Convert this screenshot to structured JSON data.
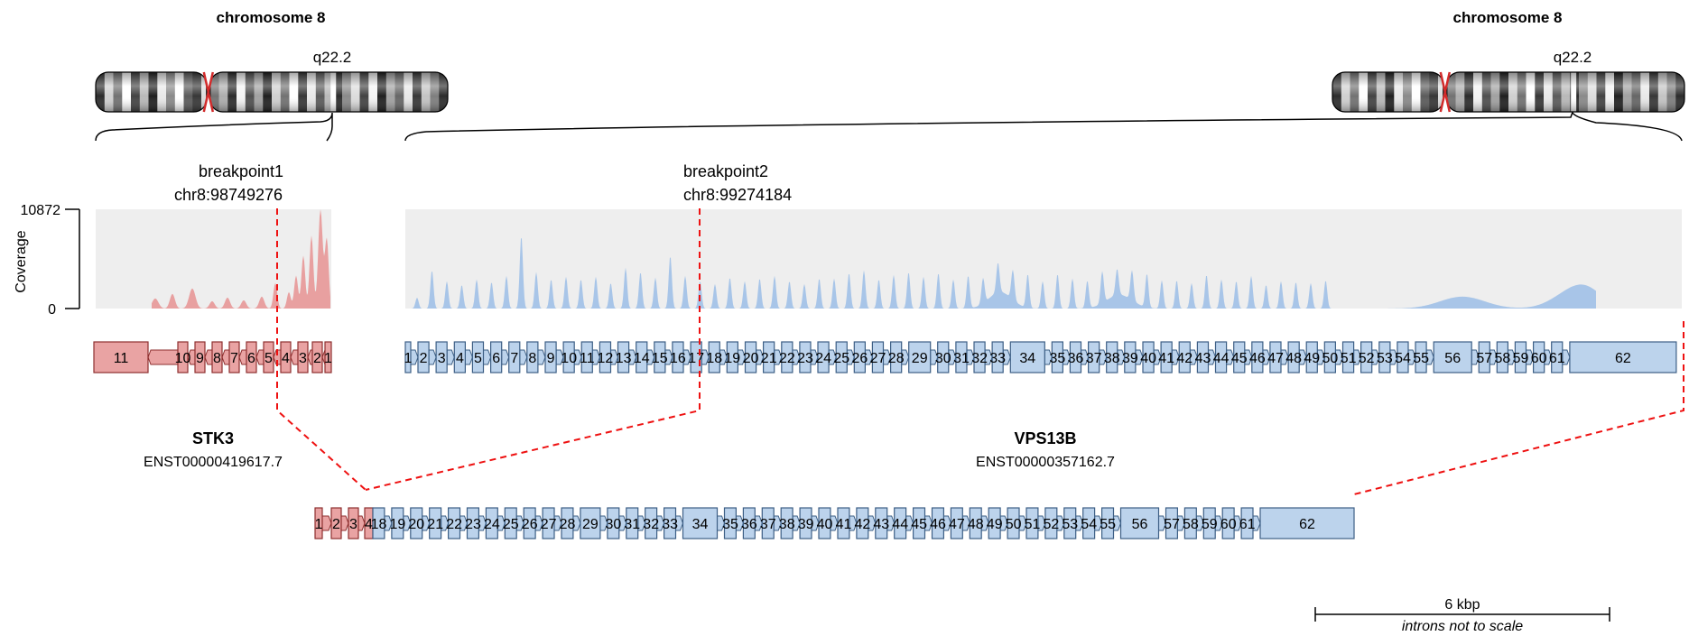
{
  "colors": {
    "gene1_fill": "#e9a3a3",
    "gene1_stroke": "#8e2f2f",
    "gene2_fill": "#bcd3ec",
    "gene2_stroke": "#3d5f85",
    "coverage1": "#e8a0a0",
    "coverage2": "#a8c5e8",
    "coverage_bg": "#eeeeee",
    "breakpoint": "#ee1111",
    "centromere": "#d22b2b"
  },
  "chromosome_left": {
    "title": "chromosome 8",
    "band": "q22.2"
  },
  "chromosome_right": {
    "title": "chromosome 8",
    "band": "q22.2"
  },
  "breakpoint1": {
    "label": "breakpoint1",
    "position": "chr8:98749276"
  },
  "breakpoint2": {
    "label": "breakpoint2",
    "position": "chr8:99274184"
  },
  "coverage_axis": {
    "label": "Coverage",
    "max": "10872",
    "min": "0"
  },
  "gene1": {
    "name": "STK3",
    "transcript": "ENST00000419617.7",
    "exons": [
      "11",
      "10",
      "9",
      "8",
      "7",
      "6",
      "5",
      "4",
      "3",
      "2",
      "1"
    ]
  },
  "gene2": {
    "name": "VPS13B",
    "transcript": "ENST00000357162.7",
    "exons": [
      "1",
      "2",
      "3",
      "4",
      "5",
      "6",
      "7",
      "8",
      "9",
      "10",
      "11",
      "12",
      "13",
      "14",
      "15",
      "16",
      "17",
      "18",
      "19",
      "20",
      "21",
      "22",
      "23",
      "24",
      "25",
      "26",
      "27",
      "28",
      "29",
      "30",
      "31",
      "32",
      "33",
      "34",
      "35",
      "36",
      "37",
      "38",
      "39",
      "40",
      "41",
      "42",
      "43",
      "44",
      "45",
      "46",
      "47",
      "48",
      "49",
      "50",
      "51",
      "52",
      "53",
      "54",
      "55",
      "56",
      "57",
      "58",
      "59",
      "60",
      "61",
      "62"
    ]
  },
  "fusion": {
    "gene1_exons": [
      "1",
      "2",
      "3",
      "4"
    ],
    "gene2_exons": [
      "18",
      "19",
      "20",
      "21",
      "22",
      "23",
      "24",
      "25",
      "26",
      "27",
      "28",
      "29",
      "30",
      "31",
      "32",
      "33",
      "34",
      "35",
      "36",
      "37",
      "38",
      "39",
      "40",
      "41",
      "42",
      "43",
      "44",
      "45",
      "46",
      "47",
      "48",
      "49",
      "50",
      "51",
      "52",
      "53",
      "54",
      "55",
      "56",
      "57",
      "58",
      "59",
      "60",
      "61",
      "62"
    ]
  },
  "scale_bar": {
    "label": "6 kbp",
    "note": "introns not to scale"
  }
}
